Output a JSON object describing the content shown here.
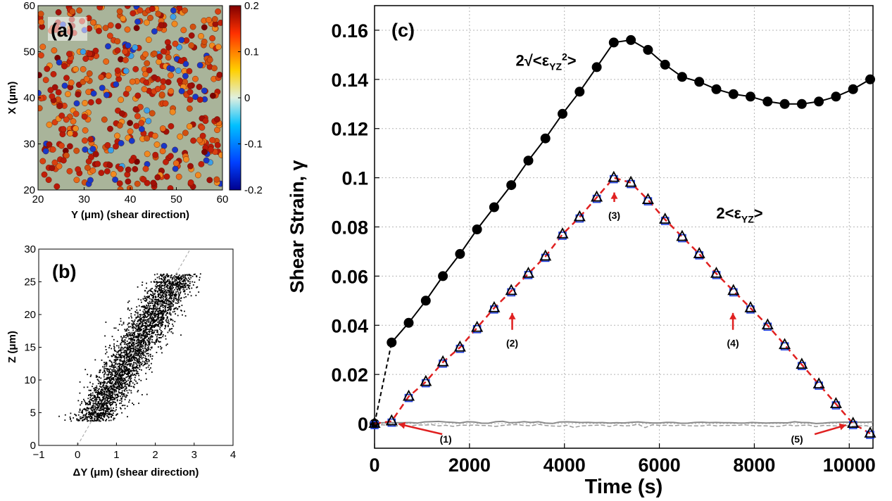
{
  "chart_data": [
    {
      "id": "a",
      "type": "scatter",
      "panel_label": "(a)",
      "xlabel": "Y (μm) (shear direction)",
      "ylabel": "X (μm)",
      "xlim": [
        20,
        60
      ],
      "ylim": [
        20,
        60
      ],
      "x_ticks": [
        "20",
        "30",
        "40",
        "50",
        "60"
      ],
      "y_ticks": [
        "20",
        "30",
        "40",
        "50",
        "60"
      ],
      "colorbar": {
        "range": [
          -0.2,
          0.2
        ],
        "ticks": [
          "0.2",
          "0.1",
          "0",
          "-0.1",
          "-0.2"
        ],
        "colormap": "jet"
      }
    },
    {
      "id": "b",
      "type": "scatter",
      "panel_label": "(b)",
      "xlabel": "ΔY (μm) (shear direction)",
      "ylabel": "Z (μm)",
      "xlim": [
        -1,
        4
      ],
      "ylim": [
        0,
        30
      ],
      "x_ticks": [
        "−1",
        "0",
        "1",
        "2",
        "3",
        "4"
      ],
      "y_ticks": [
        "0",
        "5",
        "10",
        "15",
        "20",
        "25",
        "30"
      ],
      "fit_line": {
        "x": [
          0,
          2.9
        ],
        "y": [
          0,
          30
        ],
        "style": "dashed",
        "color": "#aaaaaa"
      }
    },
    {
      "id": "c",
      "type": "line",
      "panel_label": "(c)",
      "xlabel": "Time (s)",
      "ylabel": "Shear Strain, γ",
      "xlim": [
        0,
        10500
      ],
      "ylim": [
        -0.01,
        0.17
      ],
      "x_ticks": [
        "0",
        "2000",
        "4000",
        "6000",
        "8000",
        "10000"
      ],
      "y_ticks": [
        "0",
        "0.02",
        "0.04",
        "0.06",
        "0.08",
        "0.1",
        "0.12",
        "0.14",
        "0.16"
      ],
      "grid": true,
      "series": [
        {
          "name": "2√<ε_YZ²>",
          "color": "#000000",
          "marker": "circle",
          "x": [
            0,
            360,
            720,
            1080,
            1440,
            1800,
            2160,
            2520,
            2880,
            3240,
            3600,
            3960,
            4320,
            4680,
            5040,
            5400,
            5760,
            6120,
            6480,
            6840,
            7200,
            7560,
            7920,
            8280,
            8640,
            9000,
            9360,
            9720,
            10080,
            10440
          ],
          "y": [
            0,
            0.033,
            0.041,
            0.05,
            0.06,
            0.069,
            0.079,
            0.088,
            0.097,
            0.107,
            0.116,
            0.126,
            0.135,
            0.145,
            0.155,
            0.156,
            0.152,
            0.146,
            0.141,
            0.139,
            0.136,
            0.134,
            0.133,
            0.131,
            0.13,
            0.13,
            0.131,
            0.133,
            0.136,
            0.14
          ]
        },
        {
          "name": "2<ε_YZ>",
          "color": "#e02020",
          "marker": "triangle+square",
          "x": [
            0,
            360,
            720,
            1080,
            1440,
            1800,
            2160,
            2520,
            2880,
            3240,
            3600,
            3960,
            4320,
            4680,
            5040,
            5400,
            5760,
            6120,
            6480,
            6840,
            7200,
            7560,
            7920,
            8280,
            8640,
            9000,
            9360,
            9720,
            10080,
            10440
          ],
          "y": [
            0,
            0.001,
            0.011,
            0.017,
            0.025,
            0.031,
            0.039,
            0.047,
            0.054,
            0.061,
            0.068,
            0.077,
            0.084,
            0.092,
            0.1,
            0.098,
            0.091,
            0.083,
            0.076,
            0.069,
            0.061,
            0.054,
            0.047,
            0.04,
            0.032,
            0.024,
            0.016,
            0.008,
            0.0,
            -0.004
          ]
        }
      ],
      "baseline": {
        "y": 0,
        "color": "#888888"
      },
      "annotations": [
        {
          "text": "2√<εYZ²>",
          "x": 5050,
          "y": 0.147
        },
        {
          "text": "2<εYZ>",
          "x": 7050,
          "y": 0.082
        },
        {
          "text": "(1)",
          "x": 1500,
          "y": -0.006
        },
        {
          "text": "(2)",
          "x": 2900,
          "y": 0.033
        },
        {
          "text": "(3)",
          "x": 5050,
          "y": 0.085
        },
        {
          "text": "(4)",
          "x": 7550,
          "y": 0.033
        },
        {
          "text": "(5)",
          "x": 8900,
          "y": -0.006
        }
      ]
    }
  ]
}
